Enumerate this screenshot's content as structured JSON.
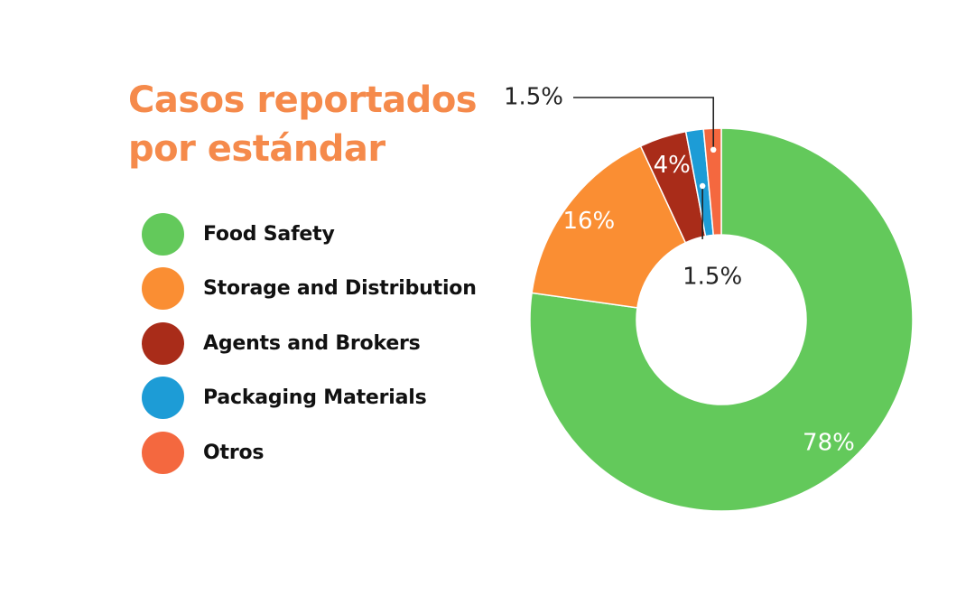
{
  "chart_data": {
    "type": "pie",
    "title_lines": [
      "Casos reportados",
      "por estándar"
    ],
    "categories": [
      "Food Safety",
      "Storage and Distribution",
      "Agents and Brokers",
      "Packaging Materials",
      "Otros"
    ],
    "values": [
      78,
      16,
      4,
      1.5,
      1.5
    ],
    "labels": [
      "78%",
      "16%",
      "4%",
      "1.5%",
      "1.5%"
    ],
    "colors": [
      "#63c95b",
      "#fa8e33",
      "#a92c19",
      "#1d9cd6",
      "#f4683f"
    ],
    "legend": "left",
    "donut": true
  }
}
